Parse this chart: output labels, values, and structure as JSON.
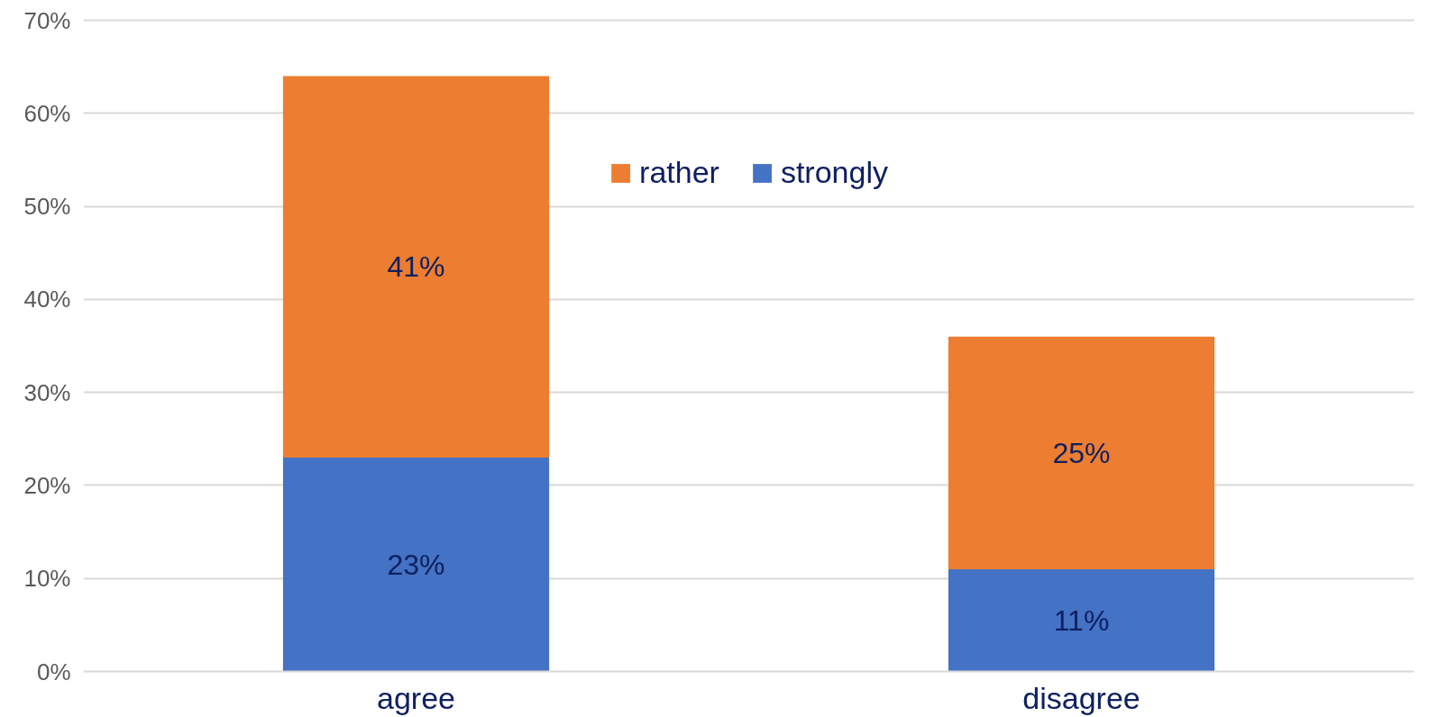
{
  "chart_data": {
    "type": "bar",
    "stacked": true,
    "categories": [
      "agree",
      "disagree"
    ],
    "series": [
      {
        "name": "strongly",
        "color": "#4472c4",
        "values": [
          23,
          11
        ],
        "value_labels": [
          "23%",
          "11%"
        ]
      },
      {
        "name": "rather",
        "color": "#ed7d31",
        "values": [
          41,
          25
        ],
        "value_labels": [
          "41%",
          "25%"
        ]
      }
    ],
    "ylim": [
      0,
      70
    ],
    "yticks": [
      {
        "value": 0,
        "label": "0%"
      },
      {
        "value": 10,
        "label": "10%"
      },
      {
        "value": 20,
        "label": "20%"
      },
      {
        "value": 30,
        "label": "30%"
      },
      {
        "value": 40,
        "label": "40%"
      },
      {
        "value": 50,
        "label": "50%"
      },
      {
        "value": 60,
        "label": "60%"
      },
      {
        "value": 70,
        "label": "70%"
      }
    ],
    "grid": "y",
    "legend": "top"
  }
}
